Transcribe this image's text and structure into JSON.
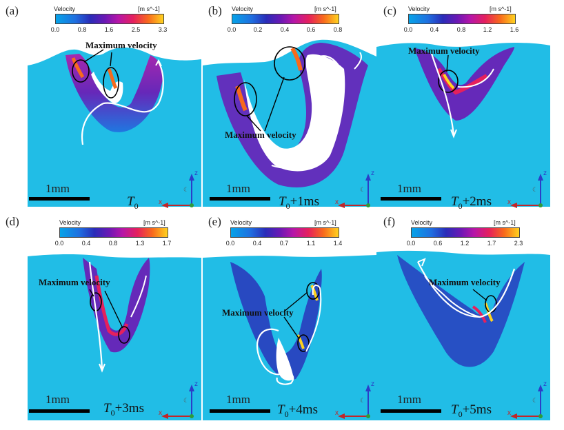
{
  "colorbar_title": "Velocity",
  "colorbar_unit": "[m s^-1]",
  "scale_label": "1mm",
  "annotation": "Maximum velocity",
  "axis_labels": {
    "z": "z",
    "x": "x"
  },
  "time_prefix": "T",
  "time_sub": "0",
  "panels": [
    {
      "letter": "(a)",
      "ticks": [
        "0.0",
        "0.8",
        "1.6",
        "2.5",
        "3.3"
      ],
      "time_suffix": ""
    },
    {
      "letter": "(b)",
      "ticks": [
        "0.0",
        "0.2",
        "0.4",
        "0.6",
        "0.8"
      ],
      "time_suffix": "+1ms"
    },
    {
      "letter": "(c)",
      "ticks": [
        "0.0",
        "0.4",
        "0.8",
        "1.2",
        "1.6"
      ],
      "time_suffix": "+2ms"
    },
    {
      "letter": "(d)",
      "ticks": [
        "0.0",
        "0.4",
        "0.8",
        "1.3",
        "1.7"
      ],
      "time_suffix": "+3ms"
    },
    {
      "letter": "(e)",
      "ticks": [
        "0.0",
        "0.4",
        "0.7",
        "1.1",
        "1.4"
      ],
      "time_suffix": "+4ms"
    },
    {
      "letter": "(f)",
      "ticks": [
        "0.0",
        "0.6",
        "1.2",
        "1.7",
        "2.3"
      ],
      "time_suffix": "+5ms"
    }
  ],
  "colors": {
    "field": "#21bde6",
    "low": "#1f6fe0",
    "mid": "#6d18b4",
    "high": "#e5205d",
    "max": "#ffd21f",
    "axis_z": "#2a3ec8",
    "axis_x": "#c0262a",
    "axis_y": "#2f9a3a"
  }
}
